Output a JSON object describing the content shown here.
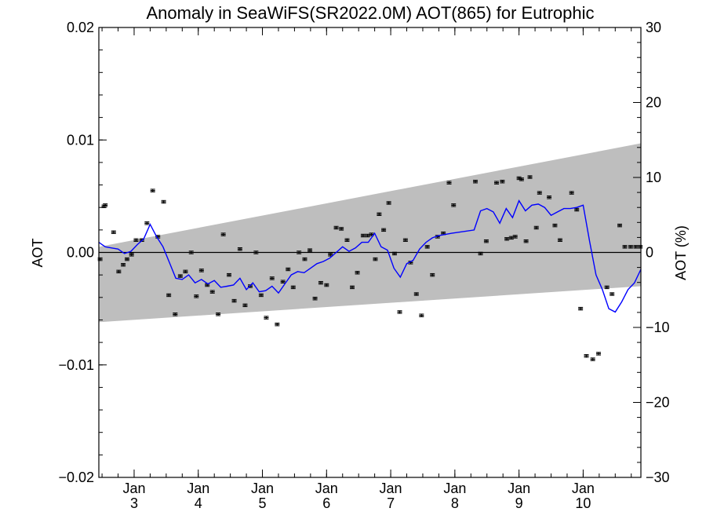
{
  "chart_data": {
    "type": "scatter",
    "title": "Anomaly in SeaWiFS(SR2022.0M) AOT(865) for Eutrophic",
    "ylabel_left": "AOT",
    "ylabel_right": "AOT (%)",
    "xlabel": "",
    "x_unit": "fractional year offset; Jan of year N at x = N",
    "xlim": [
      2.45,
      10.9
    ],
    "ylim": [
      -0.02,
      0.02
    ],
    "ylim_right": [
      -30,
      30
    ],
    "x_tick_labels": [
      {
        "x": 3,
        "line1": "Jan",
        "line2": "3"
      },
      {
        "x": 4,
        "line1": "Jan",
        "line2": "4"
      },
      {
        "x": 5,
        "line1": "Jan",
        "line2": "5"
      },
      {
        "x": 6,
        "line1": "Jan",
        "line2": "6"
      },
      {
        "x": 7,
        "line1": "Jan",
        "line2": "7"
      },
      {
        "x": 8,
        "line1": "Jan",
        "line2": "8"
      },
      {
        "x": 9,
        "line1": "Jan",
        "line2": "9"
      },
      {
        "x": 10,
        "line1": "Jan",
        "line2": "10"
      }
    ],
    "y_ticks_left": [
      {
        "v": 0.02,
        "label": "0.02"
      },
      {
        "v": 0.01,
        "label": "0.01"
      },
      {
        "v": 0.0,
        "label": "0.00"
      },
      {
        "v": -0.01,
        "label": "−0.01"
      },
      {
        "v": -0.02,
        "label": "−0.02"
      }
    ],
    "y_ticks_right": [
      {
        "v": 30,
        "label": "30"
      },
      {
        "v": 20,
        "label": "20"
      },
      {
        "v": 10,
        "label": "10"
      },
      {
        "v": 0,
        "label": "0"
      },
      {
        "v": -10,
        "label": "−10"
      },
      {
        "v": -20,
        "label": "−20"
      },
      {
        "v": -30,
        "label": "−30"
      }
    ],
    "band": {
      "x": [
        2.45,
        10.9
      ],
      "upper": [
        0.0005,
        0.0097
      ],
      "lower": [
        -0.0062,
        -0.003
      ],
      "color": "#bebebe"
    },
    "zero_line": 0.0,
    "series": [
      {
        "kind": "points_with_error_bars",
        "error": 0.00012,
        "color": "#000000",
        "x": [
          2.47,
          2.53,
          2.55,
          2.68,
          2.76,
          2.83,
          2.89,
          2.96,
          3.03,
          3.12,
          3.2,
          3.29,
          3.37,
          3.46,
          3.54,
          3.64,
          3.72,
          3.8,
          3.89,
          3.97,
          4.05,
          4.14,
          4.22,
          4.31,
          4.39,
          4.48,
          4.56,
          4.65,
          4.73,
          4.81,
          4.9,
          4.98,
          5.06,
          5.15,
          5.23,
          5.32,
          5.4,
          5.48,
          5.57,
          5.66,
          5.74,
          5.82,
          5.91,
          6.0,
          6.06,
          6.15,
          6.23,
          6.32,
          6.4,
          6.48,
          6.57,
          6.64,
          6.7,
          6.76,
          6.82,
          6.89,
          6.97,
          7.06,
          7.14,
          7.23,
          7.31,
          7.4,
          7.48,
          7.57,
          7.65,
          7.73,
          7.82,
          7.91,
          7.98,
          8.32,
          8.4,
          8.49,
          8.65,
          8.74,
          8.81,
          8.88,
          8.94,
          9.0,
          9.04,
          9.11,
          9.17,
          9.27,
          9.32,
          9.47,
          9.56,
          9.64,
          9.82,
          9.9,
          9.96,
          10.05,
          10.15,
          10.24,
          10.37,
          10.45,
          10.57,
          10.65,
          10.74,
          10.82,
          10.89
        ],
        "y": [
          -0.0006,
          0.0041,
          0.0042,
          0.0018,
          -0.0017,
          -0.0011,
          -0.0006,
          -0.0002,
          0.0011,
          0.0011,
          0.0026,
          0.0055,
          0.0014,
          0.0045,
          -0.0038,
          -0.0055,
          -0.0021,
          -0.0017,
          0.0,
          -0.0039,
          -0.0016,
          -0.0029,
          -0.0035,
          -0.0055,
          0.0016,
          -0.002,
          -0.0043,
          0.0003,
          -0.0047,
          -0.003,
          0.0,
          -0.0038,
          -0.0058,
          -0.0023,
          -0.0064,
          -0.0026,
          -0.0015,
          -0.0031,
          0.0,
          -0.0006,
          0.0002,
          -0.0041,
          -0.0027,
          -0.0029,
          -0.0002,
          0.0022,
          0.0021,
          0.0011,
          -0.0031,
          -0.0018,
          0.0015,
          0.0015,
          0.0016,
          -0.0006,
          0.0034,
          0.002,
          0.0044,
          -0.0001,
          -0.0053,
          0.0011,
          -0.0009,
          -0.0037,
          -0.0056,
          0.0005,
          -0.002,
          0.0014,
          0.0017,
          0.0062,
          0.0042,
          0.0063,
          -0.0001,
          0.001,
          0.0062,
          0.0063,
          0.0012,
          0.0013,
          0.0014,
          0.0066,
          0.0065,
          0.001,
          0.0067,
          0.0022,
          0.0053,
          0.0049,
          0.0024,
          0.0011,
          0.0053,
          0.0038,
          -0.005,
          -0.0092,
          -0.0095,
          -0.009,
          -0.0031,
          -0.0037,
          0.0024,
          0.0005,
          0.0005,
          0.0005,
          0.0005
        ]
      },
      {
        "kind": "line",
        "color": "#0000ff",
        "x": [
          2.45,
          2.55,
          2.65,
          2.75,
          2.85,
          2.95,
          3.05,
          3.15,
          3.25,
          3.35,
          3.45,
          3.55,
          3.65,
          3.75,
          3.85,
          3.95,
          4.05,
          4.15,
          4.25,
          4.35,
          4.45,
          4.55,
          4.65,
          4.75,
          4.85,
          4.95,
          5.05,
          5.15,
          5.25,
          5.35,
          5.45,
          5.55,
          5.65,
          5.75,
          5.85,
          5.95,
          6.05,
          6.15,
          6.25,
          6.35,
          6.45,
          6.55,
          6.65,
          6.75,
          6.85,
          6.95,
          7.05,
          7.15,
          7.25,
          7.35,
          7.45,
          7.55,
          7.65,
          7.75,
          7.85,
          7.95,
          8.3,
          8.4,
          8.5,
          8.6,
          8.7,
          8.8,
          8.9,
          9.0,
          9.1,
          9.2,
          9.3,
          9.4,
          9.5,
          9.6,
          9.7,
          9.8,
          9.9,
          10.0,
          10.1,
          10.2,
          10.3,
          10.4,
          10.5,
          10.6,
          10.7,
          10.8,
          10.9
        ],
        "y": [
          0.0009,
          0.0005,
          0.0004,
          0.0003,
          -0.0001,
          0.0001,
          0.0007,
          0.0012,
          0.0025,
          0.0014,
          0.0005,
          -0.0009,
          -0.0023,
          -0.0024,
          -0.002,
          -0.0027,
          -0.0024,
          -0.0028,
          -0.0025,
          -0.0031,
          -0.003,
          -0.0029,
          -0.0023,
          -0.0033,
          -0.0027,
          -0.0035,
          -0.0034,
          -0.003,
          -0.0036,
          -0.0028,
          -0.002,
          -0.0017,
          -0.0018,
          -0.0014,
          -0.001,
          -0.0008,
          -0.0005,
          0.0,
          0.0005,
          0.0001,
          0.0004,
          0.0009,
          0.0009,
          0.0017,
          0.0005,
          0.0002,
          -0.0014,
          -0.0022,
          -0.001,
          -0.0007,
          0.0003,
          0.0009,
          0.0013,
          0.0015,
          0.0016,
          0.0017,
          0.002,
          0.0037,
          0.0039,
          0.0036,
          0.0026,
          0.0039,
          0.0031,
          0.0046,
          0.0037,
          0.0042,
          0.0043,
          0.004,
          0.0033,
          0.0036,
          0.0039,
          0.0039,
          0.004,
          0.0042,
          0.001,
          -0.002,
          -0.0033,
          -0.005,
          -0.0053,
          -0.0044,
          -0.0033,
          -0.0027,
          -0.0015
        ]
      }
    ],
    "grid": false,
    "legend": "none"
  }
}
